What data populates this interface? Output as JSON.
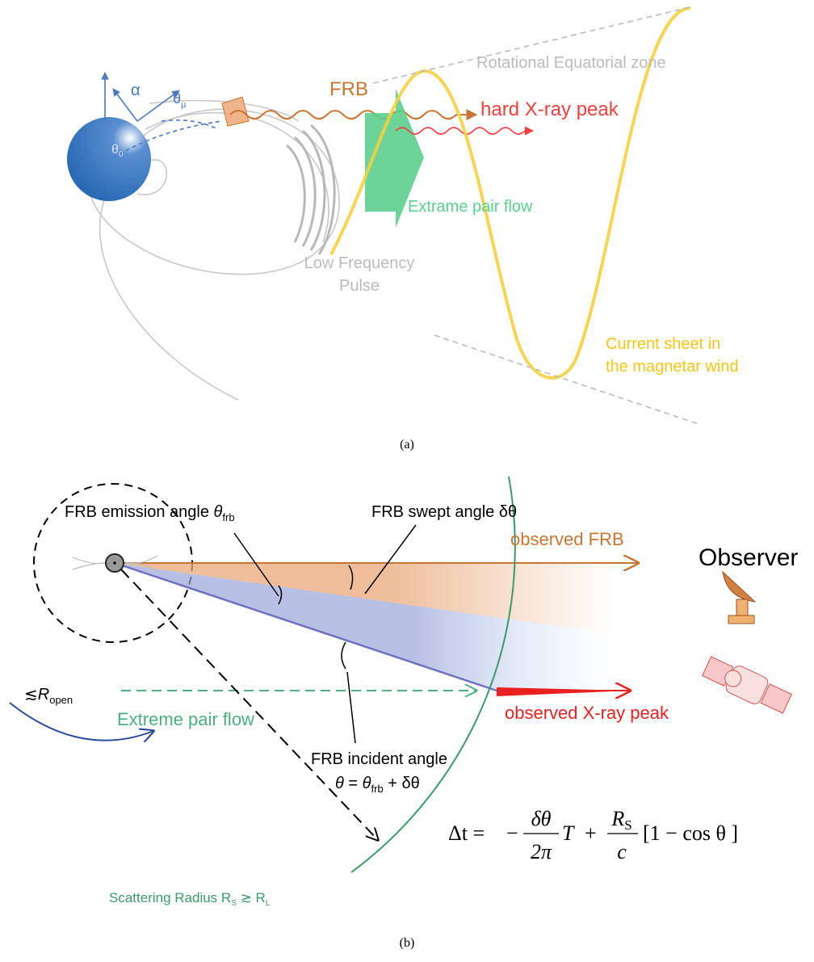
{
  "panel_a": {
    "caption": "(a)",
    "labels": {
      "alpha": "α",
      "theta_mu": {
        "symbol": "θ",
        "sub": "μ"
      },
      "theta_0": {
        "symbol": "θ",
        "sub": "0"
      },
      "frb": "FRB",
      "hard_xray": "hard X-ray peak",
      "equatorial_zone": "Rotational Equatorial zone",
      "pair_flow": "Extrame pair flow",
      "low_freq_pulse": [
        "Low Frequency",
        "Pulse"
      ],
      "current_sheet": [
        "Current sheet in",
        "the magnetar wind"
      ]
    }
  },
  "panel_b": {
    "caption": "(b)",
    "labels": {
      "emission_angle": {
        "text": "FRB emission angle ",
        "symbol": "θ",
        "sub": "frb"
      },
      "swept_angle": "FRB swept angle δθ",
      "observer": "Observer",
      "observed_frb": "observed FRB",
      "observed_xray": "observed X-ray peak",
      "r_open": {
        "symbol": "≲",
        "r": "R",
        "sub": "open"
      },
      "pair_flow": "Extreme pair flow",
      "incident_angle": {
        "text": "FRB incident angle",
        "eq_lhs": "θ",
        "eq_mid": " =  ",
        "eq_sym": "θ",
        "eq_sub": "frb",
        "eq_rest": " + δθ"
      },
      "scattering_radius": {
        "text": "Scattering Radius R",
        "sub1": "S",
        "rel": " ≳ R",
        "sub2": "L"
      },
      "formula": {
        "lhs": "Δt =",
        "minus": "−",
        "num1": "δθ",
        "den1": "2π",
        "t": "T",
        "plus": "+",
        "num2": "R",
        "num2_sub": "S",
        "den2": "c",
        "bracket": "[1 − cos θ ]"
      }
    }
  }
}
